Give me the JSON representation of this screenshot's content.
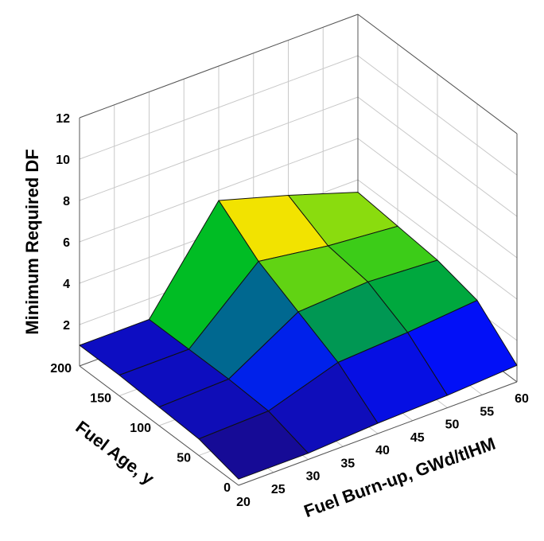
{
  "chart_data": {
    "type": "surface3d",
    "xlabel": "Fuel Burn-up, GWd/tlHM",
    "ylabel": "Fuel Age, y",
    "zlabel": "Minimum Required DF",
    "x": [
      20,
      30,
      40,
      50,
      60
    ],
    "y": [
      0,
      50,
      100,
      150,
      200
    ],
    "z": [
      [
        0.3,
        0.3,
        0.5,
        0.6,
        0.8
      ],
      [
        0.8,
        0.9,
        2.0,
        2.2,
        2.5
      ],
      [
        0.9,
        1.0,
        3.0,
        3.2,
        3.0
      ],
      [
        1.0,
        1.0,
        4.0,
        3.5,
        3.2
      ],
      [
        1.0,
        1.0,
        5.5,
        4.5,
        3.4
      ]
    ],
    "xlim": [
      20,
      60
    ],
    "xticks": [
      20,
      25,
      30,
      35,
      40,
      45,
      50,
      55,
      60
    ],
    "ylim": [
      0,
      200
    ],
    "yticks": [
      0,
      50,
      100,
      150,
      200
    ],
    "zlim": [
      0,
      12
    ],
    "zticks": [
      2,
      4,
      6,
      8,
      10,
      12
    ],
    "grid": true,
    "colormap": [
      "#1c0a7a",
      "#0010ff",
      "#00c020",
      "#f0f000",
      "#ff9000"
    ]
  }
}
